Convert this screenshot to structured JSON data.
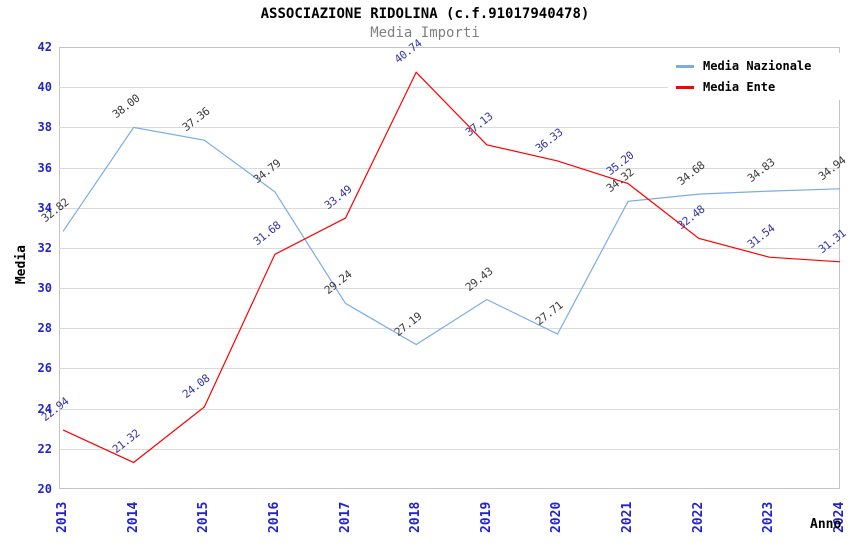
{
  "chart_data": {
    "type": "line",
    "title": "ASSOCIAZIONE RIDOLINA (c.f.91017940478)",
    "subtitle": "Media Importi",
    "xlabel": "Anno",
    "ylabel": "Media",
    "x": [
      "2013",
      "2014",
      "2015",
      "2016",
      "2017",
      "2018",
      "2019",
      "2020",
      "2021",
      "2022",
      "2023",
      "2024"
    ],
    "series": [
      {
        "name": "Media Nazionale",
        "color": "#7aade4",
        "label_color": "#3a3a3a",
        "values": [
          32.82,
          38.0,
          37.36,
          34.79,
          29.24,
          27.19,
          29.43,
          27.71,
          34.32,
          34.68,
          34.83,
          34.94
        ]
      },
      {
        "name": "Media Ente",
        "color": "#ff0000",
        "label_color": "#3434a4",
        "values": [
          22.94,
          21.32,
          24.08,
          31.68,
          33.49,
          40.74,
          37.13,
          36.33,
          35.2,
          32.48,
          31.54,
          31.31
        ]
      }
    ],
    "ylim": [
      20,
      42
    ],
    "y_ticks": [
      20,
      22,
      24,
      26,
      28,
      30,
      32,
      34,
      36,
      38,
      40,
      42
    ],
    "grid": "horizontal-bands-alternating",
    "band_colors": [
      "#ffffff",
      "#f0f0f0"
    ],
    "tick_label_color": "#2323cc",
    "legend_position": "top-right"
  }
}
